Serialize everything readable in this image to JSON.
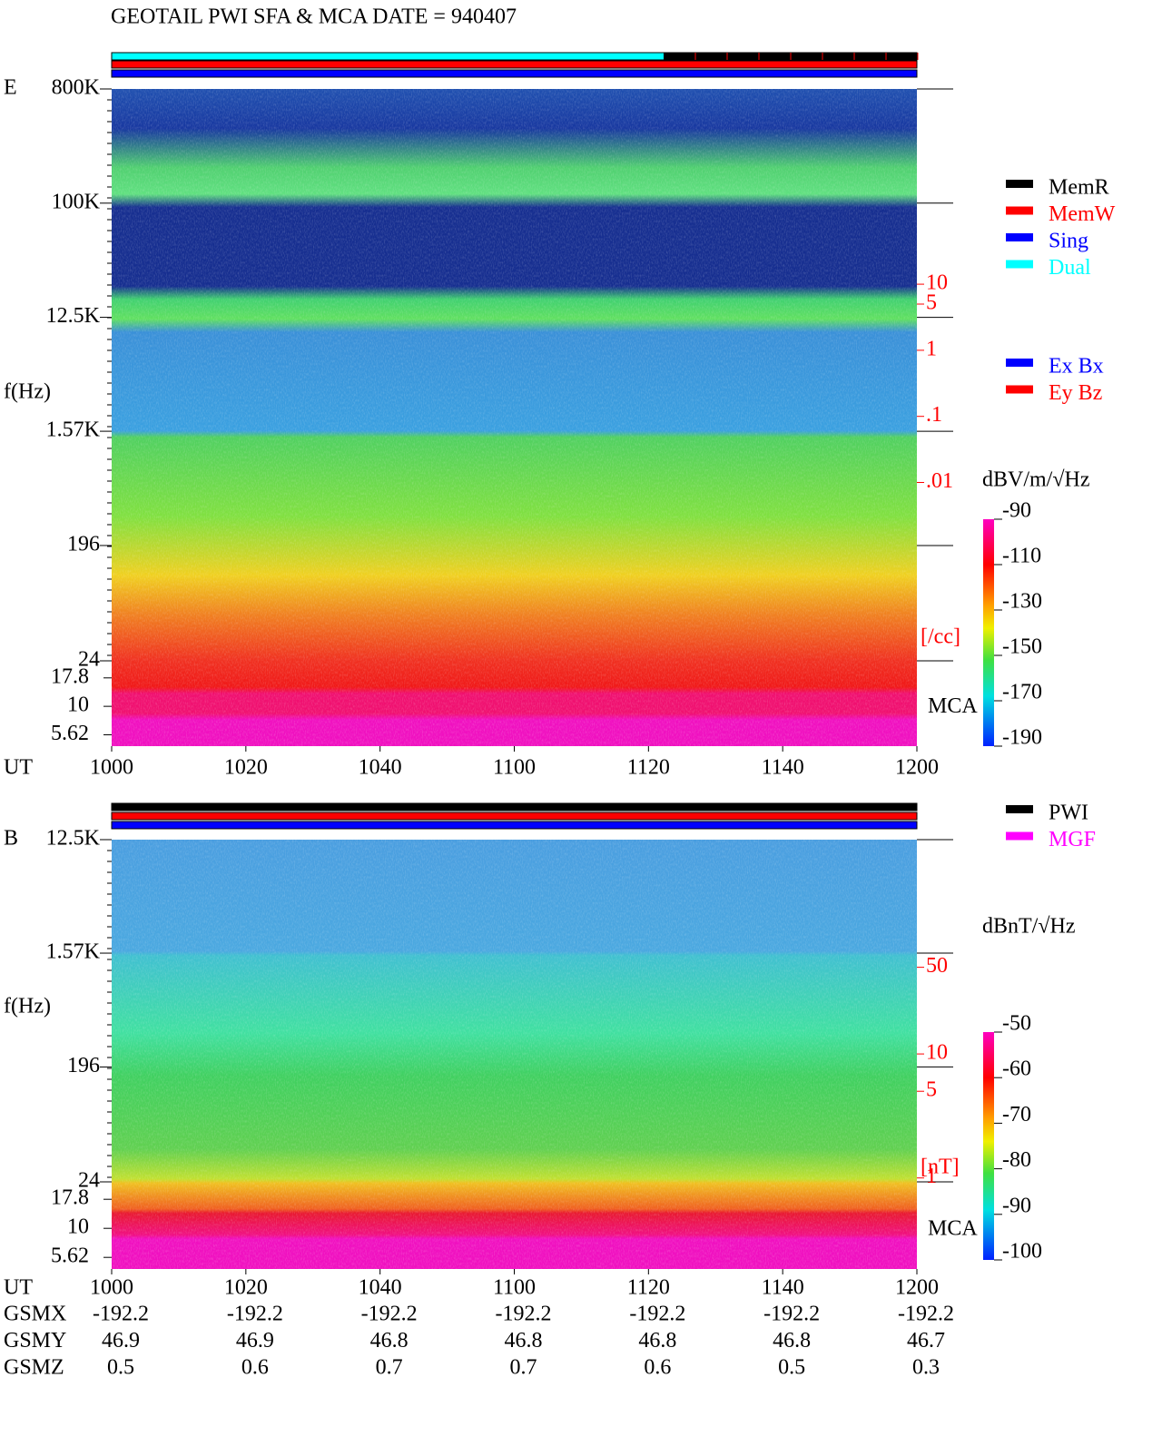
{
  "title": "GEOTAIL  PWI SFA & MCA   DATE = 940407",
  "chart_data": [
    {
      "type": "spectrogram",
      "panel_label": "E",
      "ylabel": "f(Hz)",
      "xlabel": "UT",
      "x": [
        "1000",
        "1020",
        "1040",
        "1100",
        "1120",
        "1140",
        "1200"
      ],
      "log_y": true,
      "ylim": [
        24,
        800000
      ],
      "yticks": [
        {
          "value": 800000,
          "label": "800K"
        },
        {
          "value": 100000,
          "label": "100K"
        },
        {
          "value": 12500,
          "label": "12.5K"
        },
        {
          "value": 1570,
          "label": "1.57K"
        },
        196,
        24
      ],
      "mca_channels": [
        17.8,
        10,
        5.62
      ],
      "mca_label": "MCA",
      "y2lim": [
        2e-05,
        9000
      ],
      "y2ticks": [
        10,
        5,
        1,
        {
          "value": 0.1,
          "label": ".1"
        },
        {
          "value": 0.01,
          "label": ".01"
        }
      ],
      "y2_label": "[/cc]",
      "y2_color": "#ff0000",
      "colorbar": {
        "label": "dBV/m/√Hz",
        "lim": [
          -190,
          -90
        ],
        "ticks": [
          -90,
          -110,
          -130,
          -150,
          -170,
          -190
        ]
      },
      "legends": [
        [
          {
            "name": "MemR",
            "color": "#000000"
          },
          {
            "name": "MemW",
            "color": "#ff0000"
          },
          {
            "name": "Sing",
            "color": "#0000ff"
          },
          {
            "name": "Dual",
            "color": "#00ffff"
          }
        ],
        [
          {
            "name": "Ex Bx",
            "color": "#0000ff"
          },
          {
            "name": "Ey Bz",
            "color": "#ff0000"
          }
        ]
      ]
    },
    {
      "type": "spectrogram",
      "panel_label": "B",
      "ylabel": "f(Hz)",
      "xlabel": "UT",
      "x": [
        "1000",
        "1020",
        "1040",
        "1100",
        "1120",
        "1140",
        "1200"
      ],
      "log_y": true,
      "ylim": [
        24,
        12500
      ],
      "yticks": [
        {
          "value": 12500,
          "label": "12.5K"
        },
        {
          "value": 1570,
          "label": "1.57K"
        },
        196,
        24
      ],
      "mca_channels": [
        17.8,
        10,
        5.62
      ],
      "mca_label": "MCA",
      "y2lim": [
        0.93,
        535
      ],
      "y2ticks": [
        50,
        10,
        5,
        1
      ],
      "y2_label": "[nT]",
      "y2_color": "#ff0000",
      "colorbar": {
        "label": "dBnT/√Hz",
        "lim": [
          -100,
          -50
        ],
        "ticks": [
          -50,
          -60,
          -70,
          -80,
          -90,
          -100
        ]
      },
      "legends": [
        [
          {
            "name": "PWI",
            "color": "#000000"
          },
          {
            "name": "MGF",
            "color": "#ff00ff"
          }
        ]
      ]
    }
  ],
  "orbit": {
    "labels": [
      "GSMX",
      "GSMY",
      "GSMZ"
    ],
    "rows": [
      [
        -192.2,
        -192.2,
        -192.2,
        -192.2,
        -192.2,
        -192.2,
        -192.2
      ],
      [
        46.9,
        46.9,
        46.8,
        46.8,
        46.8,
        46.8,
        46.7
      ],
      [
        0.5,
        0.6,
        0.7,
        0.7,
        0.6,
        0.5,
        0.3
      ]
    ]
  }
}
